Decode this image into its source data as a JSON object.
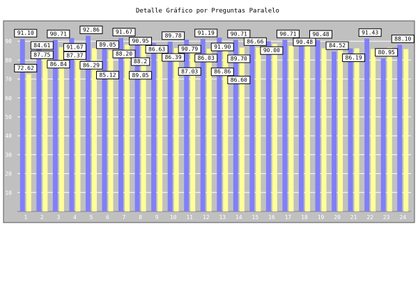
{
  "chart_data": {
    "type": "bar",
    "title": "Detalle Gráfico por Preguntas Paralelo",
    "categories": [
      "1",
      "2",
      "3",
      "4",
      "5",
      "6",
      "7",
      "8",
      "9",
      "10",
      "11",
      "12",
      "13",
      "14",
      "15",
      "16",
      "17",
      "18",
      "19",
      "20",
      "21",
      "22",
      "23",
      "24"
    ],
    "series": [
      {
        "color": "#8080f8",
        "values": [
          91.1,
          87.75,
          90.71,
          91.67,
          92.86,
          89.05,
          91.67,
          90.95,
          89.05,
          89.78,
          90.79,
          91.19,
          91.9,
          90.71,
          89.7,
          90.0,
          90.71,
          90.48,
          90.48,
          84.52,
          86.19,
          91.43,
          80.95,
          88.1
        ]
      },
      {
        "color": "#ffff99",
        "values": [
          72.62,
          84.61,
          86.84,
          87.37,
          86.29,
          85.12,
          88.2,
          88.2,
          86.63,
          86.39,
          87.03,
          86.03,
          86.86,
          86.6,
          86.66,
          88.6,
          87.5,
          87.6,
          86.2,
          85.2,
          86.2,
          85.8,
          86.6,
          85.8
        ]
      }
    ],
    "labels": [
      {
        "text": "91.10",
        "cat": 1,
        "y": 91.1
      },
      {
        "text": "72.62",
        "cat": 1,
        "y": 72.62
      },
      {
        "text": "84.61",
        "cat": 2,
        "y": 84.61
      },
      {
        "text": "87.75",
        "cat": 2,
        "y": 87.75
      },
      {
        "text": "90.71",
        "cat": 3,
        "y": 90.71
      },
      {
        "text": "86.84",
        "cat": 3,
        "y": 86.84
      },
      {
        "text": "91.67",
        "cat": 4,
        "y": 91.67
      },
      {
        "text": "87.37",
        "cat": 4,
        "y": 87.37
      },
      {
        "text": "92.86",
        "cat": 5,
        "y": 92.86
      },
      {
        "text": "86.29",
        "cat": 5,
        "y": 86.29
      },
      {
        "text": "89.05",
        "cat": 6,
        "y": 89.05
      },
      {
        "text": "85.12",
        "cat": 6,
        "y": 85.12
      },
      {
        "text": "91.67",
        "cat": 7,
        "y": 91.67
      },
      {
        "text": "88.20",
        "cat": 7,
        "y": 88.2
      },
      {
        "text": "90.95",
        "cat": 8,
        "y": 90.95
      },
      {
        "text": "88.2",
        "cat": 8,
        "y": 88.2
      },
      {
        "text": "89.05",
        "cat": 8,
        "y": 89.05
      },
      {
        "text": "86.63",
        "cat": 9,
        "y": 86.63
      },
      {
        "text": "89.78",
        "cat": 10,
        "y": 89.78
      },
      {
        "text": "86.39",
        "cat": 10,
        "y": 86.39
      },
      {
        "text": "90.79",
        "cat": 11,
        "y": 90.79
      },
      {
        "text": "87.03",
        "cat": 11,
        "y": 87.03
      },
      {
        "text": "91.19",
        "cat": 12,
        "y": 91.19
      },
      {
        "text": "86.03",
        "cat": 12,
        "y": 86.03
      },
      {
        "text": "91.90",
        "cat": 13,
        "y": 91.9
      },
      {
        "text": "86.86",
        "cat": 13,
        "y": 86.86
      },
      {
        "text": "90.71",
        "cat": 14,
        "y": 90.71
      },
      {
        "text": "89.70",
        "cat": 14,
        "y": 89.7
      },
      {
        "text": "86.60",
        "cat": 14,
        "y": 86.6
      },
      {
        "text": "86.66",
        "cat": 15,
        "y": 86.66
      },
      {
        "text": "90.00",
        "cat": 16,
        "y": 90.0
      },
      {
        "text": "90.71",
        "cat": 17,
        "y": 90.71
      },
      {
        "text": "90.48",
        "cat": 18,
        "y": 90.48
      },
      {
        "text": "90.48",
        "cat": 19,
        "y": 90.48
      },
      {
        "text": "84.52",
        "cat": 20,
        "y": 84.52
      },
      {
        "text": "86.19",
        "cat": 21,
        "y": 86.19
      },
      {
        "text": "91.43",
        "cat": 22,
        "y": 91.43
      },
      {
        "text": "80.95",
        "cat": 23,
        "y": 80.95
      },
      {
        "text": "88.10",
        "cat": 24,
        "y": 88.1
      }
    ],
    "ylim": [
      0,
      100
    ],
    "yticks": [
      10,
      20,
      30,
      40,
      50,
      60,
      70,
      80,
      90
    ],
    "xlabel": "",
    "ylabel": "",
    "grid": true,
    "colors": {
      "plot_bg": "#c0c0c0",
      "grid": "#ffffff",
      "label_bg": "#ffffff",
      "axis_text": "#ffffff"
    }
  }
}
